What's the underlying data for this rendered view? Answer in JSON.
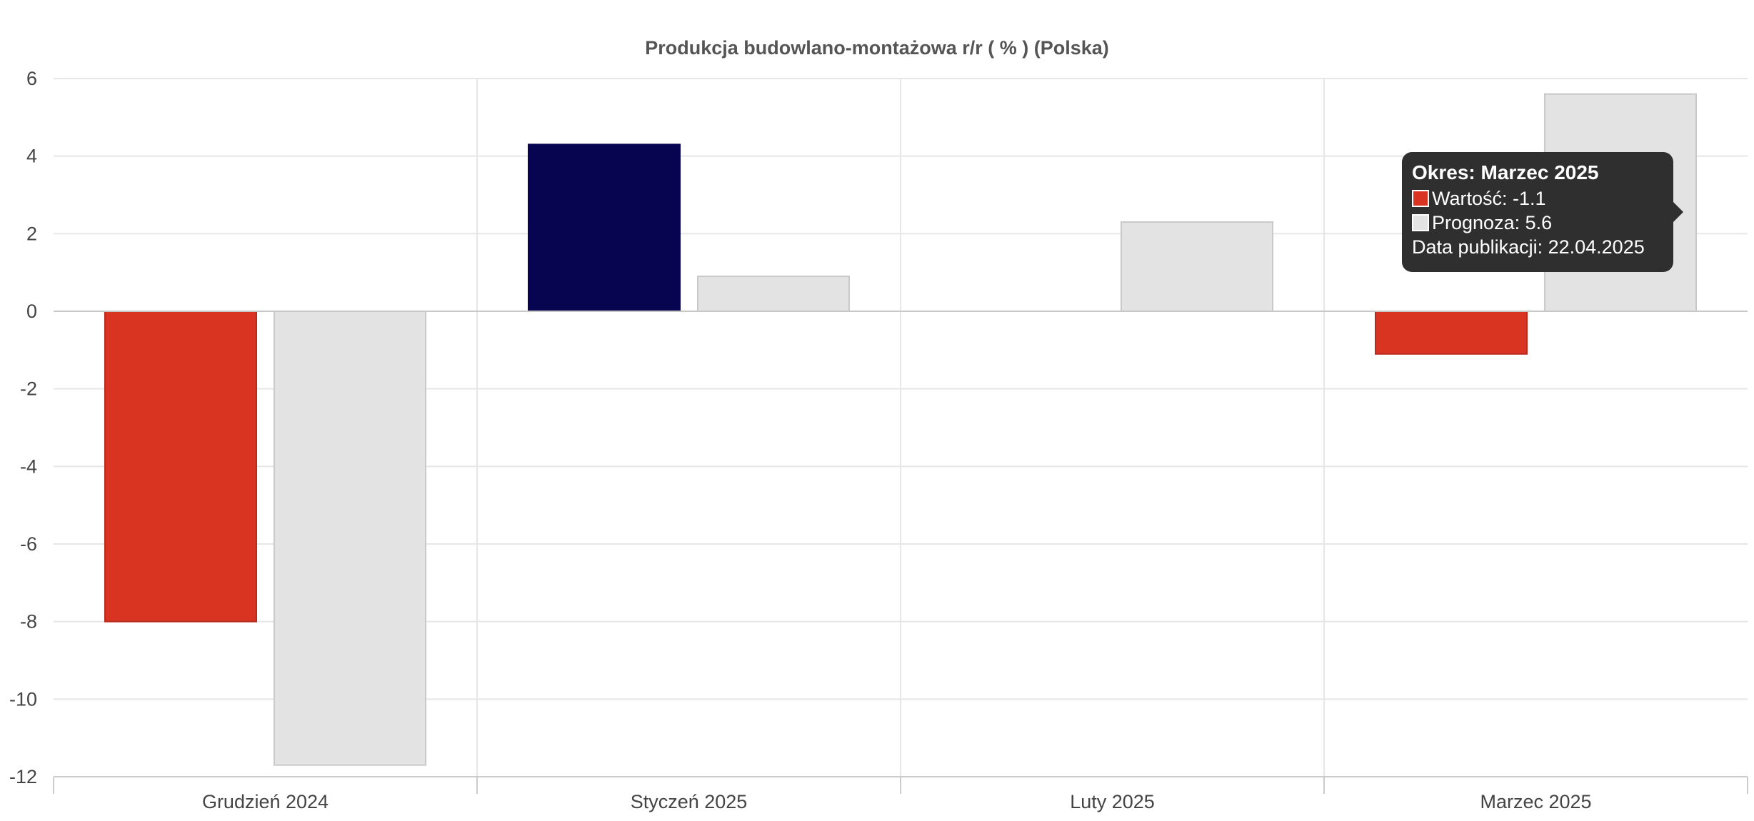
{
  "chart_data": {
    "type": "bar",
    "title": "Produkcja budowlano-montażowa r/r ( % ) (Polska)",
    "xlabel": "",
    "ylabel": "",
    "categories": [
      "Grudzień 2024",
      "Styczeń 2025",
      "Luty 2025",
      "Marzec 2025"
    ],
    "series": [
      {
        "name": "Wartość",
        "values": [
          -8.0,
          4.3,
          null,
          -1.1
        ],
        "color": "#d93322",
        "point_colors": [
          "#d93322",
          "#070450",
          null,
          "#d93322"
        ]
      },
      {
        "name": "Prognoza",
        "values": [
          -11.7,
          0.9,
          2.3,
          5.6
        ],
        "color": "#e3e3e3"
      }
    ],
    "ylim": [
      -12,
      6
    ],
    "yticks": [
      6,
      4,
      2,
      0,
      -2,
      -4,
      -6,
      -8,
      -10,
      -12
    ],
    "grid": true,
    "legend": "none"
  },
  "tooltip": {
    "title": "Okres: Marzec 2025",
    "value_label": "Wartość: -1.1",
    "forecast_label": "Prognoza: 5.6",
    "publication_label": "Data publikacji: 22.04.2025",
    "value_color": "#d93322",
    "forecast_color": "#e3e3e3"
  }
}
